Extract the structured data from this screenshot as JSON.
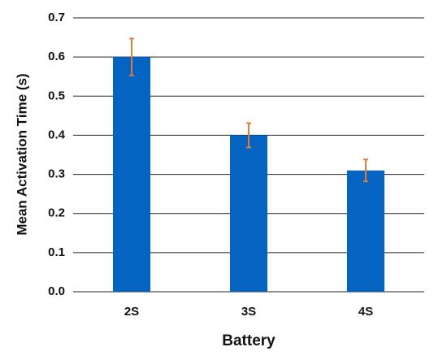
{
  "chart_data": {
    "type": "bar",
    "categories": [
      "2S",
      "3S",
      "4S"
    ],
    "values": [
      0.6,
      0.4,
      0.31
    ],
    "errors": [
      0.047,
      0.031,
      0.028
    ],
    "color": "#0563c1",
    "error_color": "#e07b39",
    "ylim": [
      0,
      0.7
    ],
    "yticks": [
      {
        "value": 0,
        "label": "0.0"
      },
      0.1,
      0.2,
      0.3,
      0.4,
      0.5,
      0.6,
      0.7
    ],
    "grid": true,
    "x_label": "Battery",
    "y_label": "Mean Activation Time (s)"
  }
}
